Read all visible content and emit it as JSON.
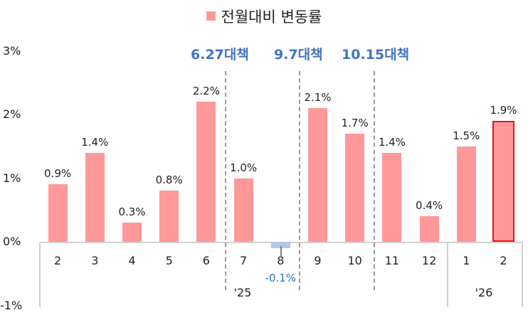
{
  "chart_data": {
    "type": "bar",
    "title": "",
    "legend": [
      "전월대비 변동률"
    ],
    "legend_position": "top",
    "xlabel": "",
    "ylabel": "",
    "ylim": [
      -1,
      3
    ],
    "yticks": [
      "3%",
      "2%",
      "1%",
      "0%",
      "-1%"
    ],
    "categories": [
      "2",
      "3",
      "4",
      "5",
      "6",
      "7",
      "8",
      "9",
      "10",
      "11",
      "12",
      "1",
      "2"
    ],
    "year_groups": [
      {
        "label": "'25",
        "months": [
          "2",
          "3",
          "4",
          "5",
          "6",
          "7",
          "8",
          "9",
          "10",
          "11",
          "12"
        ]
      },
      {
        "label": "'26",
        "months": [
          "1",
          "2"
        ]
      }
    ],
    "series": [
      {
        "name": "전월대비 변동률",
        "values": [
          0.9,
          1.4,
          0.3,
          0.8,
          2.2,
          1.0,
          -0.1,
          2.1,
          1.7,
          1.4,
          0.4,
          1.5,
          1.9
        ],
        "labels": [
          "0.9%",
          "1.4%",
          "0.3%",
          "0.8%",
          "2.2%",
          "1.0%",
          "-0.1%",
          "2.1%",
          "1.7%",
          "1.4%",
          "0.4%",
          "1.5%",
          "1.9%"
        ]
      }
    ],
    "annotations": [
      {
        "text": "6.27대책",
        "between": [
          "6",
          "7"
        ]
      },
      {
        "text": "9.7대책",
        "between": [
          "8",
          "9"
        ]
      },
      {
        "text": "10.15대책",
        "between": [
          "10",
          "11"
        ]
      }
    ],
    "grid": false,
    "highlighted_bar": 12
  },
  "colors": {
    "positive_bar": "#FF9999",
    "negative_bar": "#B4C7E7",
    "highlight_border": "#E8141B",
    "annotation_text": "#4472C4",
    "negative_label": "#2E75B6"
  }
}
